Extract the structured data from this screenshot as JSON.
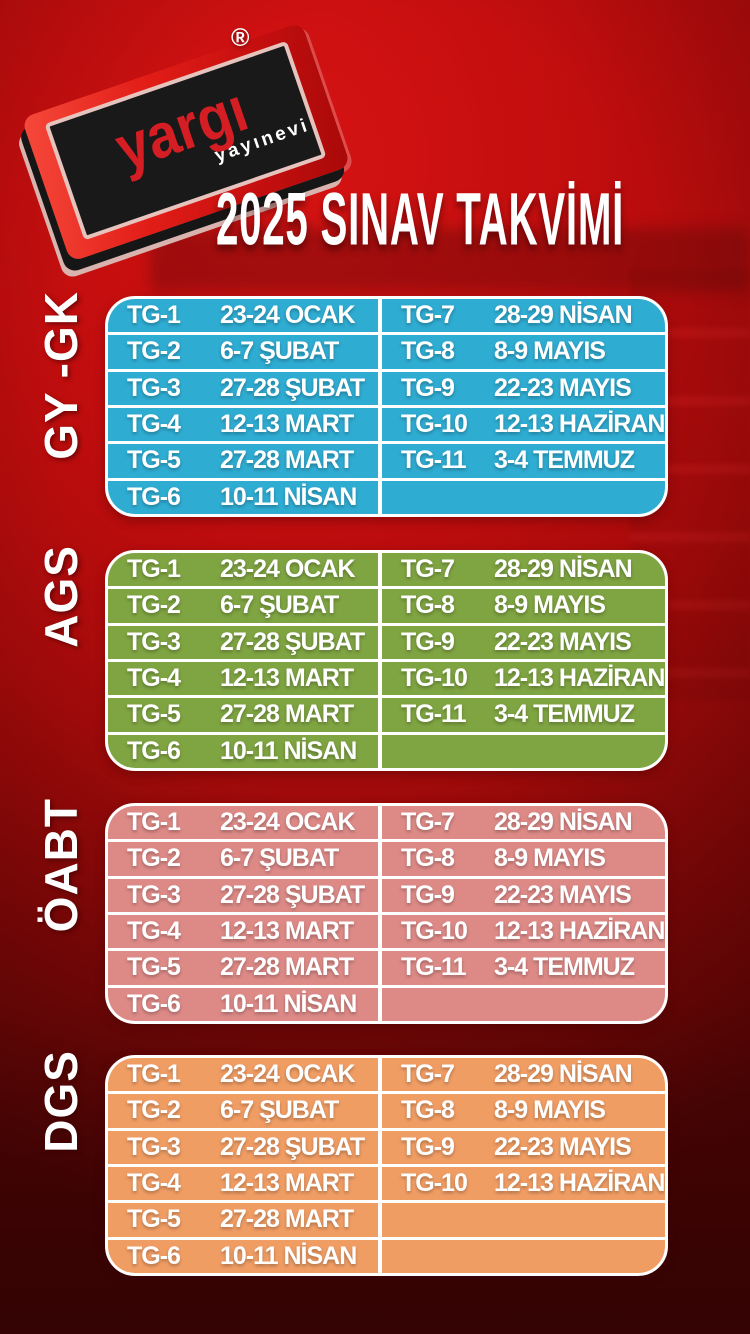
{
  "page": {
    "title": "2025 SINAV TAKVİMİ"
  },
  "brand": {
    "name": "yargı",
    "subtitle": "yayınevi",
    "registered_mark": "®"
  },
  "colors": {
    "gy_gk": "#2FACD2",
    "ags": "#7FA442",
    "oabt": "#DD8A87",
    "dgs": "#F09D64",
    "background": "#A30A0A",
    "table_border": "#FFFFFF"
  },
  "sections": [
    {
      "label": "GY -GK",
      "color": "#2FACD2",
      "left_rows": [
        {
          "tg": "TG-1",
          "date": "23-24 OCAK"
        },
        {
          "tg": "TG-2",
          "date": "6-7 ŞUBAT"
        },
        {
          "tg": "TG-3",
          "date": "27-28 ŞUBAT"
        },
        {
          "tg": "TG-4",
          "date": "12-13 MART"
        },
        {
          "tg": "TG-5",
          "date": "27-28 MART"
        },
        {
          "tg": "TG-6",
          "date": "10-11 NİSAN"
        }
      ],
      "right_rows": [
        {
          "tg": "TG-7",
          "date": "28-29 NİSAN"
        },
        {
          "tg": "TG-8",
          "date": "8-9 MAYIS"
        },
        {
          "tg": "TG-9",
          "date": "22-23 MAYIS"
        },
        {
          "tg": "TG-10",
          "date": "12-13 HAZİRAN"
        },
        {
          "tg": "TG-11",
          "date": "3-4 TEMMUZ"
        },
        {
          "tg": "",
          "date": ""
        }
      ]
    },
    {
      "label": "AGS",
      "color": "#7FA442",
      "left_rows": [
        {
          "tg": "TG-1",
          "date": "23-24 OCAK"
        },
        {
          "tg": "TG-2",
          "date": "6-7 ŞUBAT"
        },
        {
          "tg": "TG-3",
          "date": "27-28 ŞUBAT"
        },
        {
          "tg": "TG-4",
          "date": "12-13 MART"
        },
        {
          "tg": "TG-5",
          "date": "27-28 MART"
        },
        {
          "tg": "TG-6",
          "date": "10-11 NİSAN"
        }
      ],
      "right_rows": [
        {
          "tg": "TG-7",
          "date": "28-29 NİSAN"
        },
        {
          "tg": "TG-8",
          "date": "8-9 MAYIS"
        },
        {
          "tg": "TG-9",
          "date": "22-23 MAYIS"
        },
        {
          "tg": "TG-10",
          "date": "12-13 HAZİRAN"
        },
        {
          "tg": "TG-11",
          "date": "3-4 TEMMUZ"
        },
        {
          "tg": "",
          "date": ""
        }
      ]
    },
    {
      "label": "ÖABT",
      "color": "#DD8A87",
      "left_rows": [
        {
          "tg": "TG-1",
          "date": "23-24 OCAK"
        },
        {
          "tg": "TG-2",
          "date": "6-7 ŞUBAT"
        },
        {
          "tg": "TG-3",
          "date": "27-28 ŞUBAT"
        },
        {
          "tg": "TG-4",
          "date": "12-13 MART"
        },
        {
          "tg": "TG-5",
          "date": "27-28 MART"
        },
        {
          "tg": "TG-6",
          "date": "10-11 NİSAN"
        }
      ],
      "right_rows": [
        {
          "tg": "TG-7",
          "date": "28-29 NİSAN"
        },
        {
          "tg": "TG-8",
          "date": "8-9 MAYIS"
        },
        {
          "tg": "TG-9",
          "date": "22-23 MAYIS"
        },
        {
          "tg": "TG-10",
          "date": "12-13 HAZİRAN"
        },
        {
          "tg": "TG-11",
          "date": "3-4 TEMMUZ"
        },
        {
          "tg": "",
          "date": ""
        }
      ]
    },
    {
      "label": "DGS",
      "color": "#F09D64",
      "left_rows": [
        {
          "tg": "TG-1",
          "date": "23-24 OCAK"
        },
        {
          "tg": "TG-2",
          "date": "6-7 ŞUBAT"
        },
        {
          "tg": "TG-3",
          "date": "27-28 ŞUBAT"
        },
        {
          "tg": "TG-4",
          "date": "12-13 MART"
        },
        {
          "tg": "TG-5",
          "date": "27-28 MART"
        },
        {
          "tg": "TG-6",
          "date": "10-11 NİSAN"
        }
      ],
      "right_rows": [
        {
          "tg": "TG-7",
          "date": "28-29 NİSAN"
        },
        {
          "tg": "TG-8",
          "date": "8-9 MAYIS"
        },
        {
          "tg": "TG-9",
          "date": "22-23 MAYIS"
        },
        {
          "tg": "TG-10",
          "date": "12-13 HAZİRAN"
        },
        {
          "tg": "",
          "date": ""
        },
        {
          "tg": "",
          "date": ""
        }
      ]
    }
  ]
}
